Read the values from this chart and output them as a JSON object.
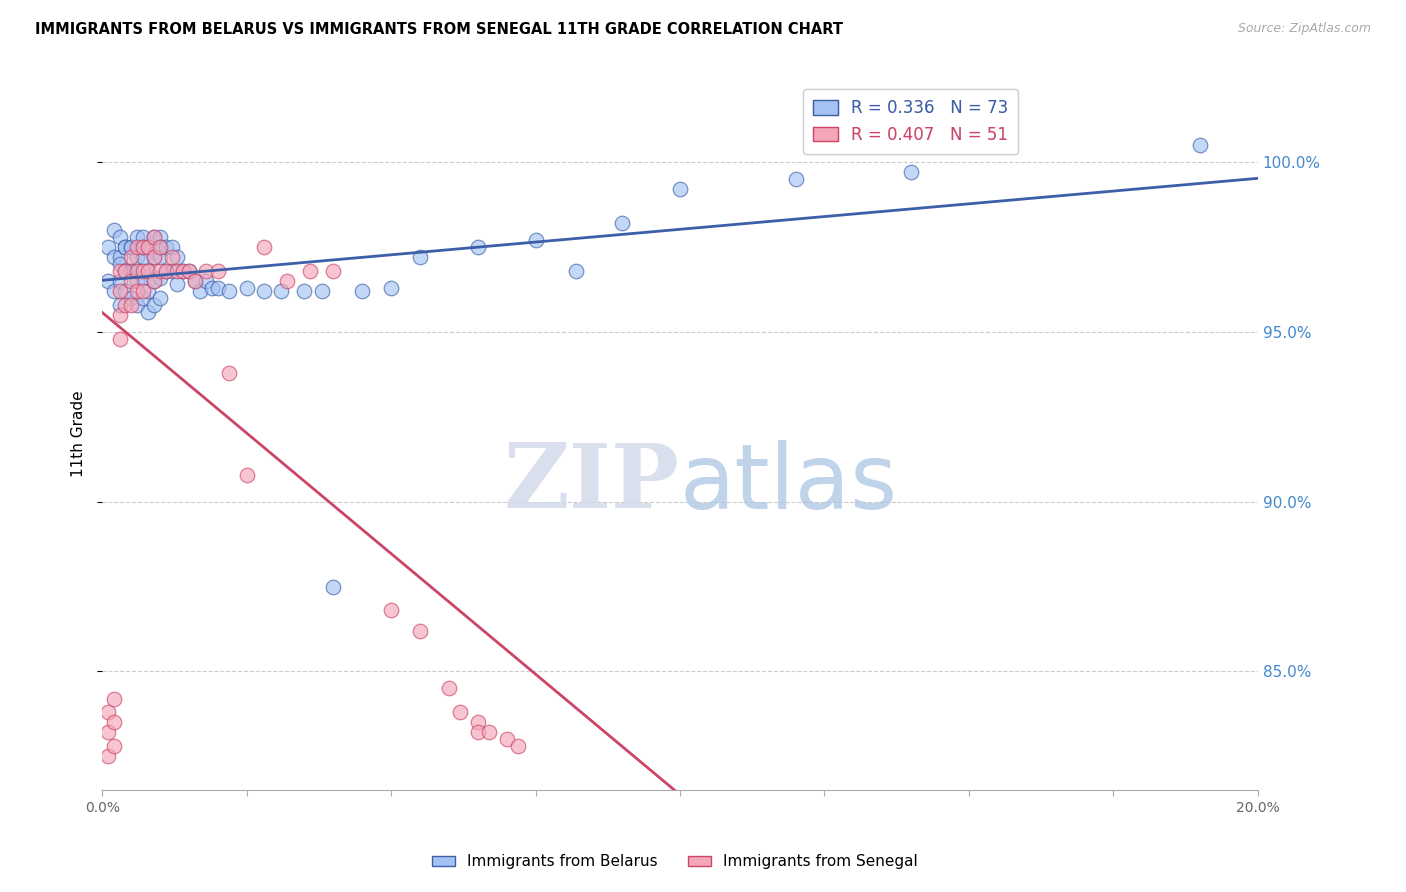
{
  "title": "IMMIGRANTS FROM BELARUS VS IMMIGRANTS FROM SENEGAL 11TH GRADE CORRELATION CHART",
  "source": "Source: ZipAtlas.com",
  "ylabel": "11th Grade",
  "legend_labels": [
    "Immigrants from Belarus",
    "Immigrants from Senegal"
  ],
  "r_belarus": 0.336,
  "n_belarus": 73,
  "r_senegal": 0.407,
  "n_senegal": 51,
  "color_belarus": "#a4c2f4",
  "color_senegal": "#f4a7b9",
  "trendline_color_belarus": "#3d5fa8",
  "trendline_color_senegal": "#cc4466",
  "xlim": [
    0.0,
    0.2
  ],
  "ylim": [
    0.815,
    1.025
  ],
  "right_yticks": [
    0.85,
    0.9,
    0.95,
    1.0
  ],
  "right_ytick_labels": [
    "85.0%",
    "90.0%",
    "95.0%",
    "100.0%"
  ],
  "xtick_positions": [
    0.0,
    0.025,
    0.05,
    0.075,
    0.1,
    0.125,
    0.15,
    0.175,
    0.2
  ],
  "xtick_labels": [
    "0.0%",
    "",
    "",
    "",
    "",
    "",
    "",
    "",
    "20.0%"
  ],
  "belarus_x": [
    0.001,
    0.001,
    0.002,
    0.002,
    0.002,
    0.003,
    0.003,
    0.003,
    0.003,
    0.003,
    0.004,
    0.004,
    0.004,
    0.004,
    0.004,
    0.005,
    0.005,
    0.005,
    0.005,
    0.005,
    0.006,
    0.006,
    0.006,
    0.006,
    0.007,
    0.007,
    0.007,
    0.007,
    0.007,
    0.008,
    0.008,
    0.008,
    0.008,
    0.009,
    0.009,
    0.009,
    0.009,
    0.01,
    0.01,
    0.01,
    0.01,
    0.01,
    0.011,
    0.011,
    0.012,
    0.012,
    0.013,
    0.013,
    0.014,
    0.015,
    0.016,
    0.017,
    0.018,
    0.019,
    0.02,
    0.022,
    0.025,
    0.028,
    0.031,
    0.035,
    0.038,
    0.04,
    0.045,
    0.05,
    0.055,
    0.065,
    0.075,
    0.082,
    0.09,
    0.1,
    0.12,
    0.14,
    0.19
  ],
  "belarus_y": [
    0.975,
    0.965,
    0.98,
    0.972,
    0.962,
    0.978,
    0.972,
    0.965,
    0.958,
    0.97,
    0.975,
    0.968,
    0.962,
    0.975,
    0.968,
    0.975,
    0.968,
    0.96,
    0.975,
    0.968,
    0.978,
    0.972,
    0.965,
    0.958,
    0.978,
    0.972,
    0.966,
    0.96,
    0.975,
    0.975,
    0.968,
    0.962,
    0.956,
    0.978,
    0.972,
    0.965,
    0.958,
    0.978,
    0.972,
    0.966,
    0.96,
    0.975,
    0.975,
    0.968,
    0.975,
    0.968,
    0.972,
    0.964,
    0.968,
    0.968,
    0.965,
    0.962,
    0.965,
    0.963,
    0.963,
    0.962,
    0.963,
    0.962,
    0.962,
    0.962,
    0.962,
    0.875,
    0.962,
    0.963,
    0.972,
    0.975,
    0.977,
    0.968,
    0.982,
    0.992,
    0.995,
    0.997,
    1.005
  ],
  "senegal_x": [
    0.001,
    0.001,
    0.001,
    0.002,
    0.002,
    0.002,
    0.003,
    0.003,
    0.003,
    0.003,
    0.004,
    0.004,
    0.005,
    0.005,
    0.005,
    0.006,
    0.006,
    0.006,
    0.007,
    0.007,
    0.007,
    0.008,
    0.008,
    0.009,
    0.009,
    0.009,
    0.01,
    0.01,
    0.011,
    0.012,
    0.013,
    0.014,
    0.015,
    0.016,
    0.018,
    0.02,
    0.022,
    0.025,
    0.028,
    0.032,
    0.036,
    0.04,
    0.05,
    0.055,
    0.06,
    0.062,
    0.065,
    0.065,
    0.067,
    0.07,
    0.072
  ],
  "senegal_y": [
    0.838,
    0.832,
    0.825,
    0.842,
    0.835,
    0.828,
    0.968,
    0.962,
    0.955,
    0.948,
    0.968,
    0.958,
    0.972,
    0.965,
    0.958,
    0.975,
    0.968,
    0.962,
    0.975,
    0.968,
    0.962,
    0.975,
    0.968,
    0.978,
    0.972,
    0.965,
    0.975,
    0.968,
    0.968,
    0.972,
    0.968,
    0.968,
    0.968,
    0.965,
    0.968,
    0.968,
    0.938,
    0.908,
    0.975,
    0.965,
    0.968,
    0.968,
    0.868,
    0.862,
    0.845,
    0.838,
    0.835,
    0.832,
    0.832,
    0.83,
    0.828
  ]
}
